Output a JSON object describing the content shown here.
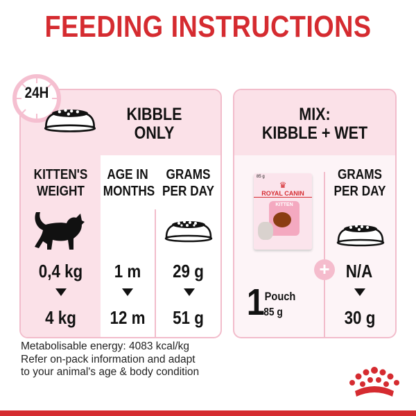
{
  "title": "FEEDING INSTRUCTIONS",
  "kibble_panel": {
    "badge": "24H",
    "heading": [
      "KIBBLE",
      "ONLY"
    ],
    "columns": [
      {
        "header": [
          "KITTEN'S",
          "WEIGHT"
        ],
        "icon": "kitten-silhouette-icon",
        "from": "0,4 kg",
        "to": "4 kg"
      },
      {
        "header": [
          "AGE IN",
          "MONTHS"
        ],
        "from": "1 m",
        "to": "12 m"
      },
      {
        "header": [
          "GRAMS",
          "PER DAY"
        ],
        "icon": "kibble-bowl-icon",
        "from": "29 g",
        "to": "51 g"
      }
    ]
  },
  "mix_panel": {
    "heading": [
      "MIX:",
      "KIBBLE + WET"
    ],
    "pouch": {
      "brand": "ROYAL CANIN",
      "variant": "KITTEN",
      "weight_label": "85 g"
    },
    "pouch_count": "1",
    "pouch_unit": "Pouch",
    "pouch_weight": "85 g",
    "grams_header": [
      "GRAMS",
      "PER DAY"
    ],
    "from": "N/A",
    "to": "30 g"
  },
  "footer": [
    "Metabolisable energy: 4083 kcal/kg",
    "Refer on-pack information and adapt",
    "to your animal's age & body condition"
  ],
  "colors": {
    "brand_red": "#d52b30",
    "pink": "#fbe1e8",
    "pink_border": "#f2bccb"
  }
}
